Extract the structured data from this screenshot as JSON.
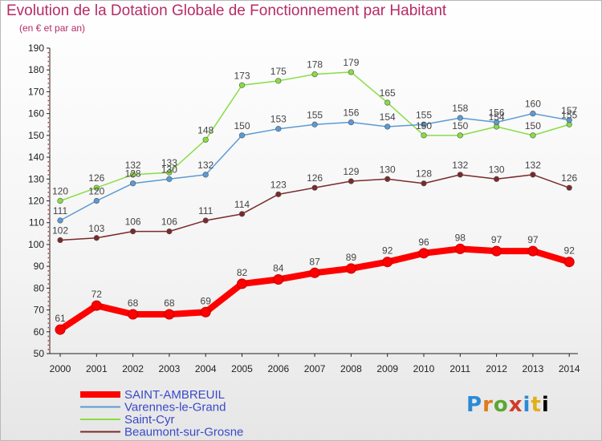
{
  "header": {
    "title": "Evolution de la Dotation Globale de Fonctionnement par Habitant",
    "subtitle": "(en € et par an)"
  },
  "logo": {
    "chars": [
      "P",
      "r",
      "o",
      "x",
      "i",
      "t",
      "i"
    ]
  },
  "chart_data": {
    "type": "line",
    "title": "Evolution de la Dotation Globale de Fonctionnement par Habitant",
    "subtitle": "(en € et par an)",
    "xlabel": "",
    "ylabel": "",
    "x": [
      "2000",
      "2001",
      "2002",
      "2003",
      "2004",
      "2005",
      "2006",
      "2007",
      "2008",
      "2009",
      "2010",
      "2011",
      "2012",
      "2013",
      "2014"
    ],
    "ylim": [
      50,
      190
    ],
    "yticks": [
      50,
      60,
      70,
      80,
      90,
      100,
      110,
      120,
      130,
      140,
      150,
      160,
      170,
      180,
      190
    ],
    "grid": false,
    "legend_position": "bottom-left",
    "series": [
      {
        "name": "SAINT-AMBREUIL",
        "color": "#ff0000",
        "values": [
          61,
          72,
          68,
          68,
          69,
          82,
          84,
          87,
          89,
          92,
          96,
          98,
          97,
          97,
          92
        ]
      },
      {
        "name": "Varennes-le-Grand",
        "color": "#5b9bd5",
        "values": [
          111,
          120,
          128,
          130,
          132,
          150,
          153,
          155,
          156,
          154,
          155,
          158,
          156,
          160,
          157
        ]
      },
      {
        "name": "Saint-Cyr",
        "color": "#88dd44",
        "values": [
          120,
          126,
          132,
          133,
          148,
          173,
          175,
          178,
          179,
          165,
          150,
          150,
          154,
          150,
          155
        ]
      },
      {
        "name": "Beaumont-sur-Grosne",
        "color": "#7a2a2a",
        "values": [
          102,
          103,
          106,
          106,
          111,
          114,
          123,
          126,
          129,
          130,
          128,
          132,
          130,
          132,
          126
        ]
      }
    ]
  }
}
